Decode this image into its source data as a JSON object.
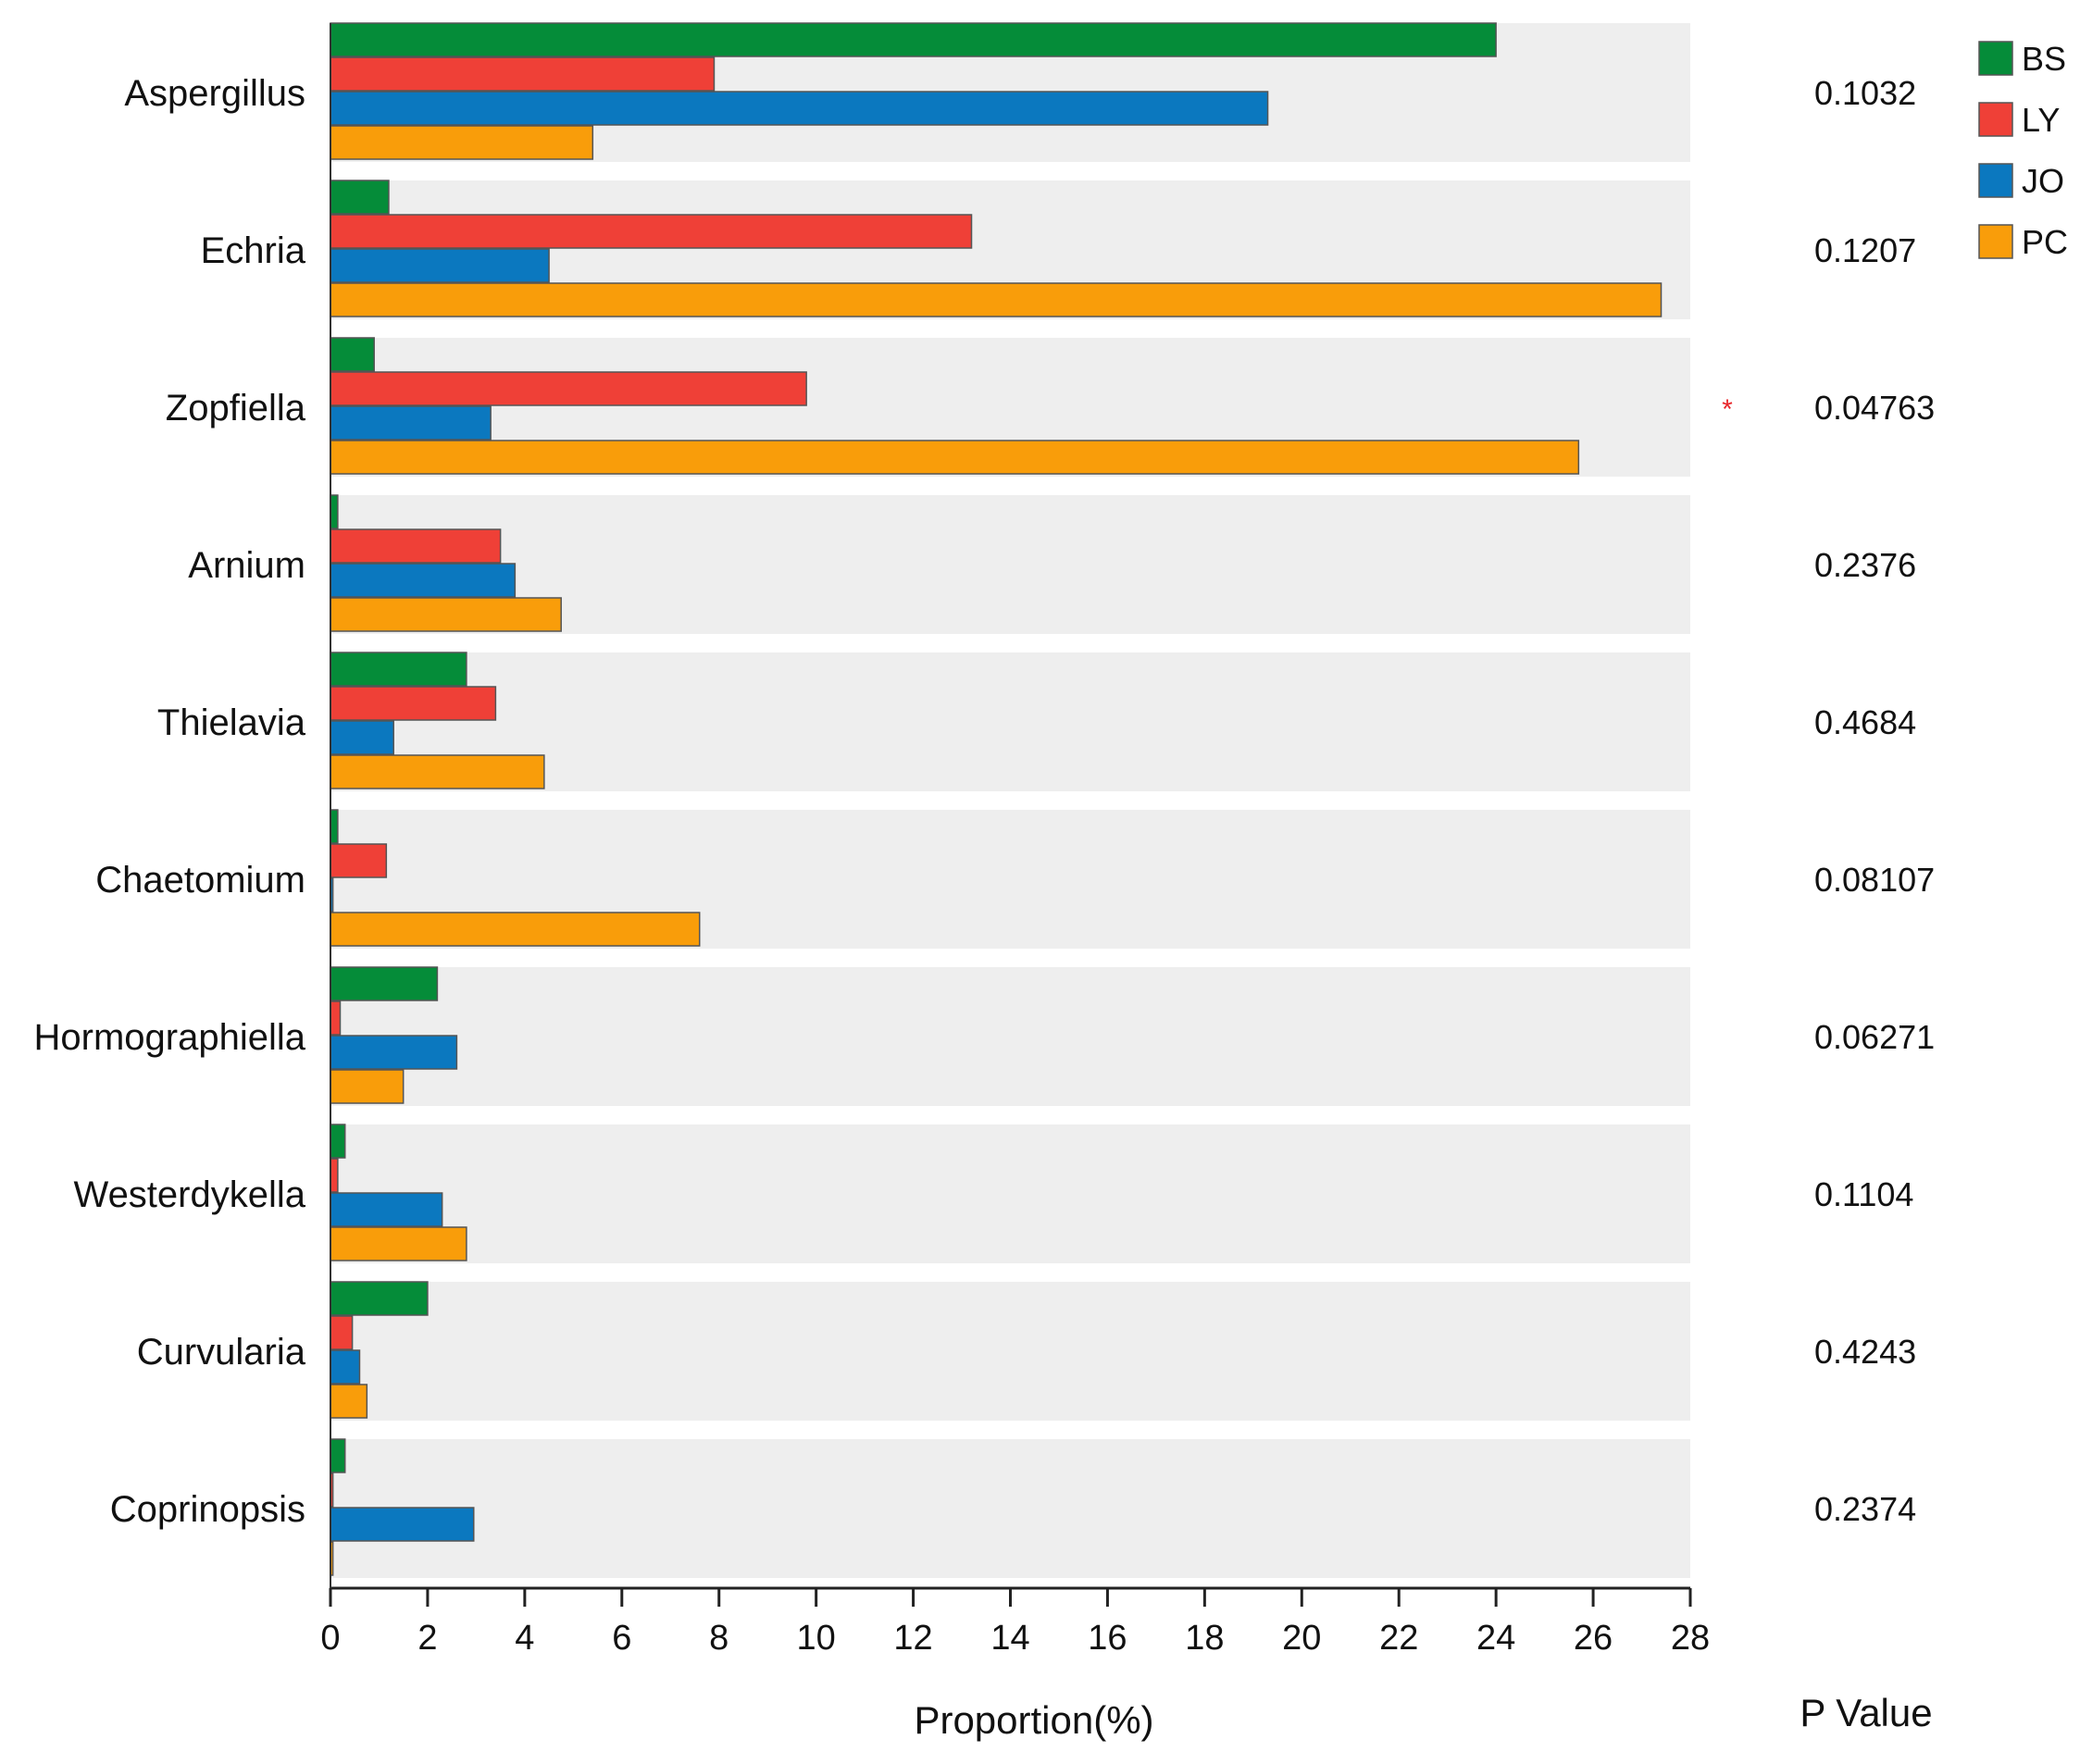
{
  "chart_data": {
    "type": "bar",
    "orientation": "horizontal",
    "xlabel": "Proportion(%)",
    "pvalue_title": "P Value",
    "xlim": [
      0,
      28
    ],
    "xticks": [
      0,
      2,
      4,
      6,
      8,
      10,
      12,
      14,
      16,
      18,
      20,
      22,
      24,
      26,
      28
    ],
    "categories": [
      "Aspergillus",
      "Echria",
      "Zopfiella",
      "Arnium",
      "Thielavia",
      "Chaetomium",
      "Hormographiella",
      "Westerdykella",
      "Curvularia",
      "Coprinopsis"
    ],
    "series": [
      {
        "name": "BS",
        "color": "#058c39",
        "values": [
          24.0,
          1.2,
          0.9,
          0.15,
          2.8,
          0.15,
          2.2,
          0.3,
          2.0,
          0.3
        ]
      },
      {
        "name": "LY",
        "color": "#ef4037",
        "values": [
          7.9,
          13.2,
          9.8,
          3.5,
          3.4,
          1.15,
          0.2,
          0.15,
          0.45,
          0.05
        ]
      },
      {
        "name": "JO",
        "color": "#0b78bf",
        "values": [
          19.3,
          4.5,
          3.3,
          3.8,
          1.3,
          0.05,
          2.6,
          2.3,
          0.6,
          2.95
        ]
      },
      {
        "name": "PC",
        "color": "#f99d0a",
        "values": [
          5.4,
          27.4,
          25.7,
          4.75,
          4.4,
          7.6,
          1.5,
          2.8,
          0.75,
          0.05
        ]
      }
    ],
    "p_values": [
      "0.1032",
      "0.1207",
      "0.04763",
      "0.2376",
      "0.4684",
      "0.08107",
      "0.06271",
      "0.1104",
      "0.4243",
      "0.2374"
    ],
    "significance": [
      "",
      "",
      "*",
      "",
      "",
      "",
      "",
      "",
      "",
      ""
    ],
    "legend_position": "top-right",
    "grid": false
  }
}
